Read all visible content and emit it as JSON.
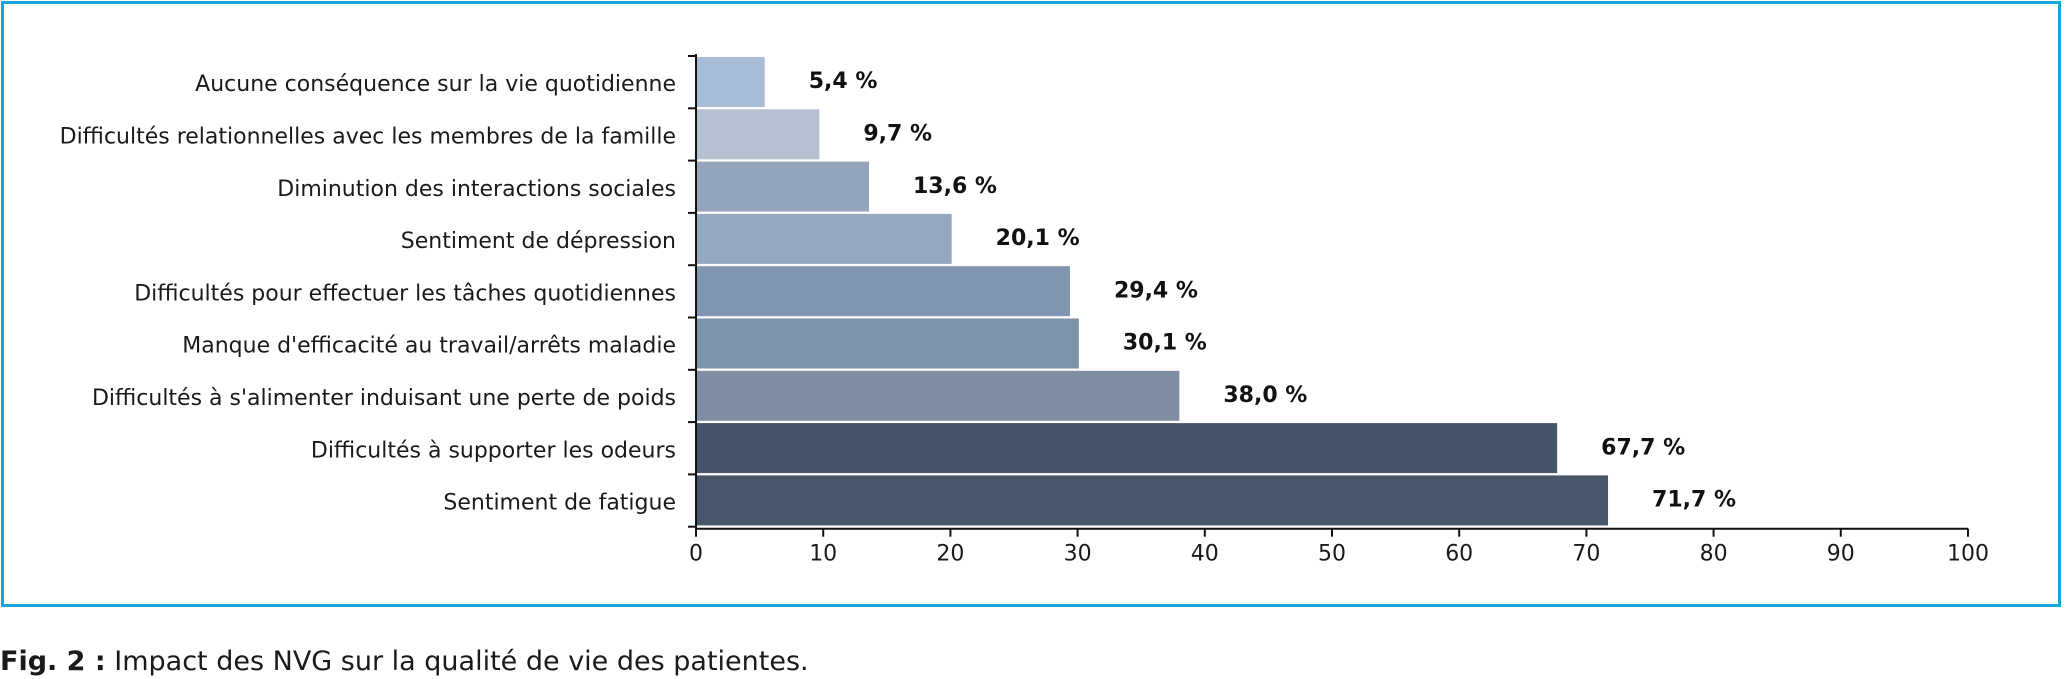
{
  "chart_data": {
    "type": "bar",
    "orientation": "horizontal",
    "categories": [
      "Aucune conséquence sur la vie quotidienne",
      "Difficultés relationnelles avec les membres de la famille",
      "Diminution des interactions sociales",
      "Sentiment de dépression",
      "Difficultés pour effectuer les tâches quotidiennes",
      "Manque d'efficacité au travail/arrêts maladie",
      "Difficultés à s'alimenter induisant une perte de poids",
      "Difficultés à supporter les odeurs",
      "Sentiment de fatigue"
    ],
    "values": [
      5.4,
      9.7,
      13.6,
      20.1,
      29.4,
      30.1,
      38.0,
      67.7,
      71.7
    ],
    "data_labels": [
      "5,4 %",
      "9,7 %",
      "13,6 %",
      "20,1 %",
      "29,4 %",
      "30,1 %",
      "38,0 %",
      "67,7 %",
      "71,7 %"
    ],
    "bar_colors": [
      "#a9bdd6",
      "#b5c1d1",
      "#93a4bb",
      "#96a8c0",
      "#8195b1",
      "#7e92aa",
      "#808ea4",
      "#465468",
      "#475669"
    ],
    "xlim": [
      0,
      100
    ],
    "xticks": [
      "0",
      "10",
      "20",
      "30",
      "40",
      "50",
      "60",
      "70",
      "80",
      "90",
      "100"
    ],
    "xlabel": "",
    "ylabel": "",
    "grid": false
  },
  "caption": {
    "label": "Fig. 2 :",
    "text": " Impact des NVG sur la qualité de vie des patientes."
  },
  "colors": {
    "frame": "#1aa0da"
  }
}
